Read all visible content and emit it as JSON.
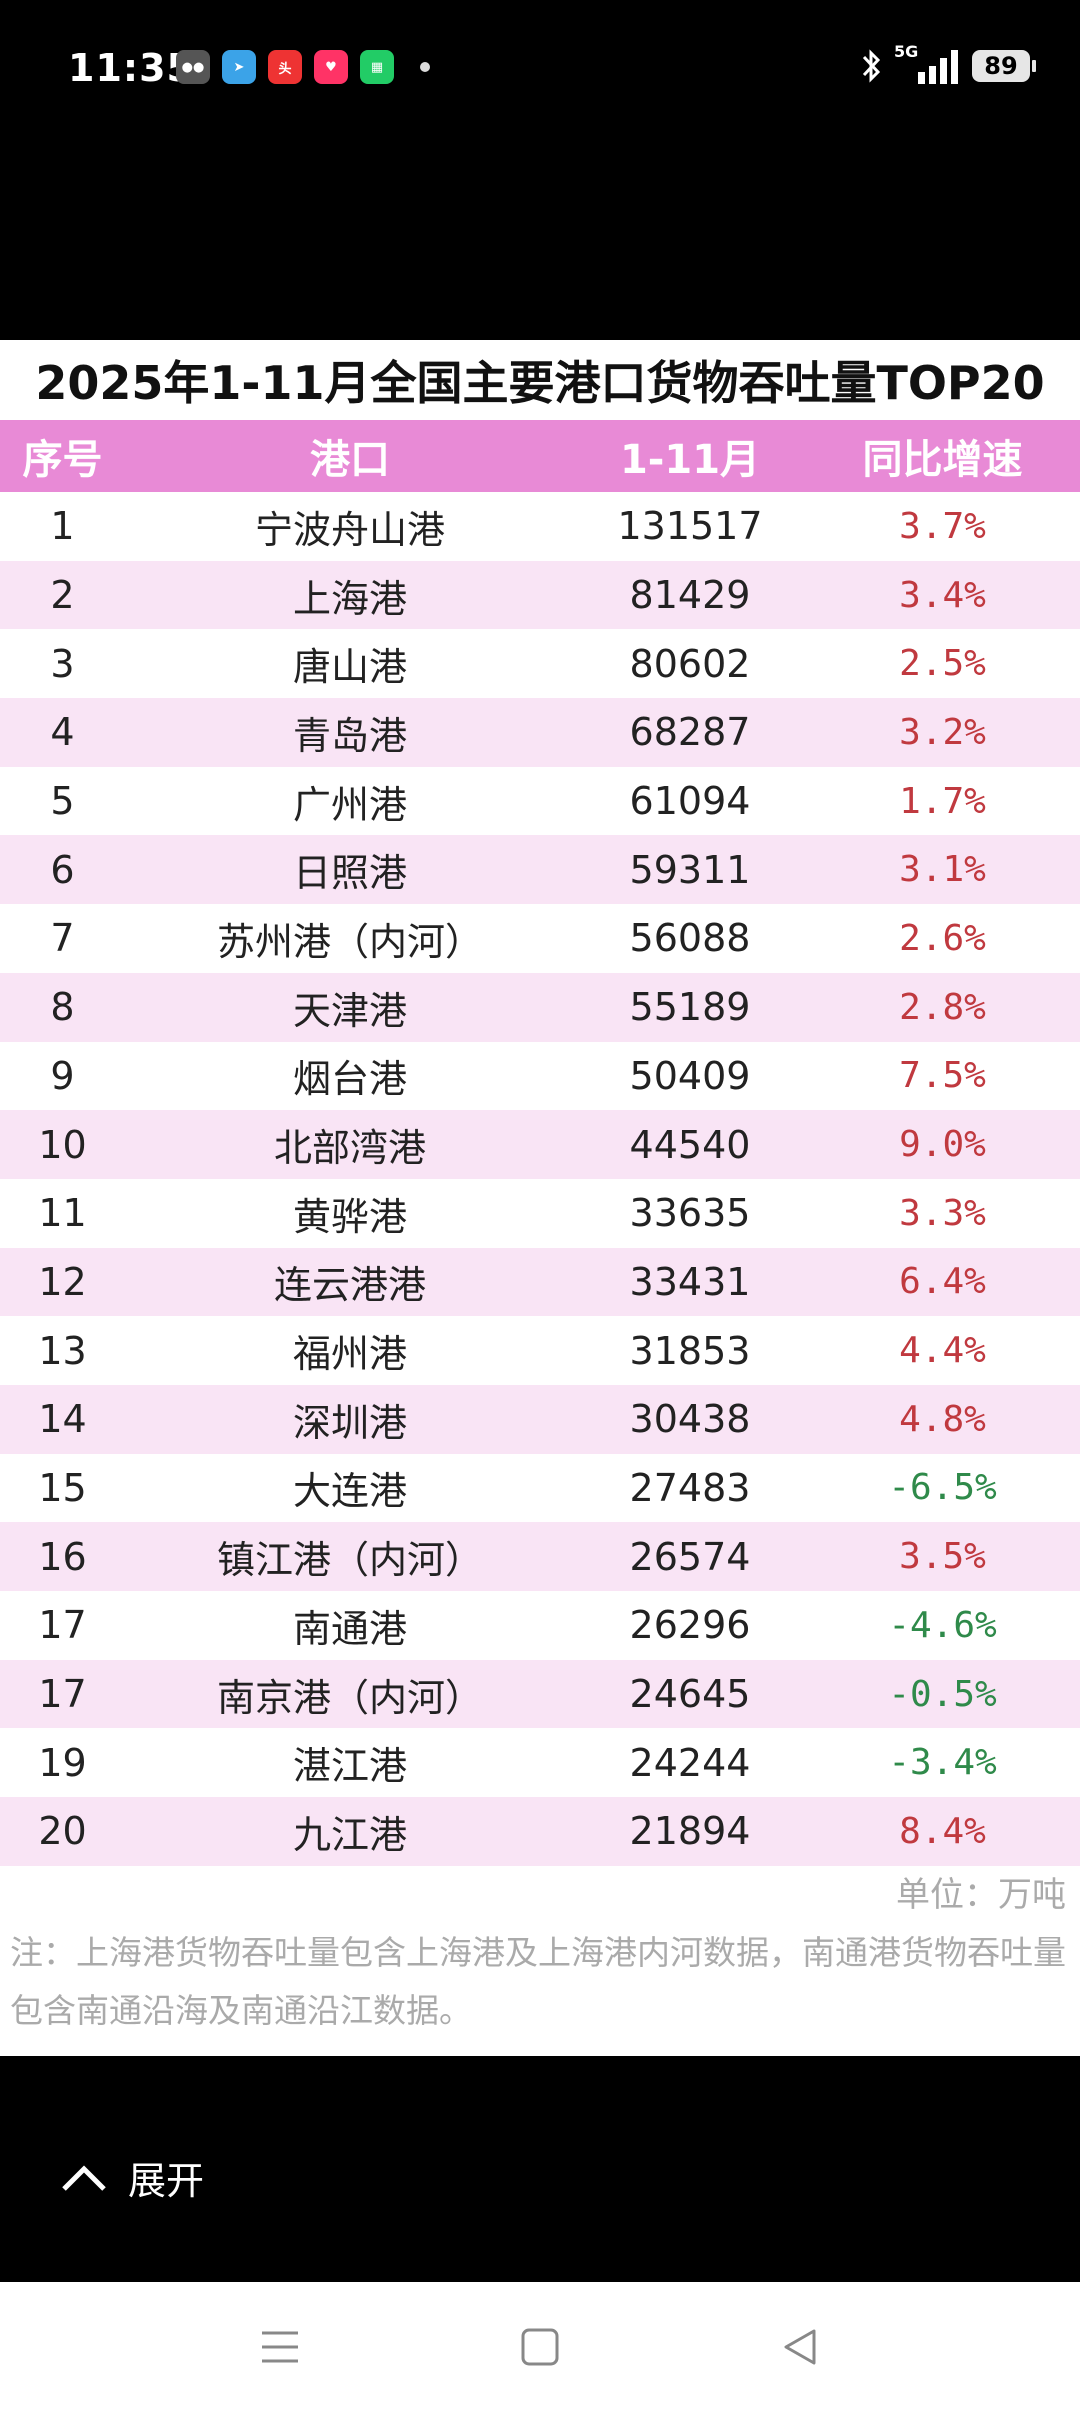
{
  "status_bar": {
    "time": "11:35",
    "network": "5G",
    "battery": "89"
  },
  "table": {
    "title": "2025年1-11月全国主要港口货物吞吐量TOP20",
    "headers": [
      "序号",
      "港口",
      "1-11月",
      "同比增速"
    ],
    "rows": [
      {
        "rank": "1",
        "port": "宁波舟山港",
        "value": "131517",
        "growth": "3.7%"
      },
      {
        "rank": "2",
        "port": "上海港",
        "value": "81429",
        "growth": "3.4%"
      },
      {
        "rank": "3",
        "port": "唐山港",
        "value": "80602",
        "growth": "2.5%"
      },
      {
        "rank": "4",
        "port": "青岛港",
        "value": "68287",
        "growth": "3.2%"
      },
      {
        "rank": "5",
        "port": "广州港",
        "value": "61094",
        "growth": "1.7%"
      },
      {
        "rank": "6",
        "port": "日照港",
        "value": "59311",
        "growth": "3.1%"
      },
      {
        "rank": "7",
        "port": "苏州港（内河）",
        "value": "56088",
        "growth": "2.6%"
      },
      {
        "rank": "8",
        "port": "天津港",
        "value": "55189",
        "growth": "2.8%"
      },
      {
        "rank": "9",
        "port": "烟台港",
        "value": "50409",
        "growth": "7.5%"
      },
      {
        "rank": "10",
        "port": "北部湾港",
        "value": "44540",
        "growth": "9.0%"
      },
      {
        "rank": "11",
        "port": "黄骅港",
        "value": "33635",
        "growth": "3.3%"
      },
      {
        "rank": "12",
        "port": "连云港港",
        "value": "33431",
        "growth": "6.4%"
      },
      {
        "rank": "13",
        "port": "福州港",
        "value": "31853",
        "growth": "4.4%"
      },
      {
        "rank": "14",
        "port": "深圳港",
        "value": "30438",
        "growth": "4.8%"
      },
      {
        "rank": "15",
        "port": "大连港",
        "value": "27483",
        "growth": "-6.5%"
      },
      {
        "rank": "16",
        "port": "镇江港（内河）",
        "value": "26574",
        "growth": "3.5%"
      },
      {
        "rank": "17",
        "port": "南通港",
        "value": "26296",
        "growth": "-4.6%"
      },
      {
        "rank": "17",
        "port": "南京港（内河）",
        "value": "24645",
        "growth": "-0.5%"
      },
      {
        "rank": "19",
        "port": "湛江港",
        "value": "24244",
        "growth": "-3.4%"
      },
      {
        "rank": "20",
        "port": "九江港",
        "value": "21894",
        "growth": "8.4%"
      }
    ],
    "unit": "单位：万吨",
    "note": "注：上海港货物吞吐量包含上海港及上海港内河数据，南通港货物吞吐量包含南通沿海及南通沿江数据。"
  },
  "expand_label": "展开",
  "colors": {
    "header_bg": "#e88ad6",
    "stripe": "#f9e4f5",
    "positive": "#c0393f",
    "negative": "#2f8a4a"
  }
}
